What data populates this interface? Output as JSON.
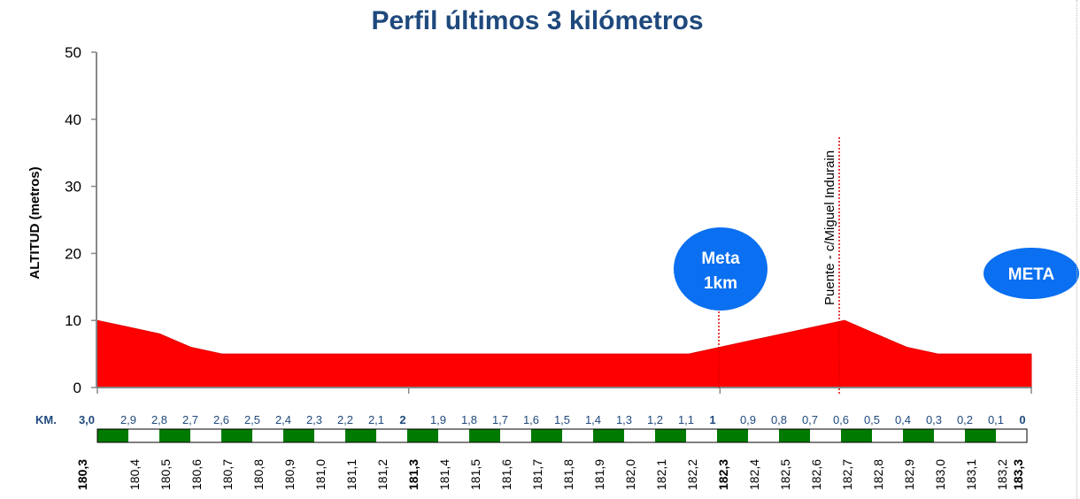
{
  "chart_data": {
    "type": "area",
    "title": "Perfil últimos 3 kilómetros",
    "ylabel": "ALTITUD (metros)",
    "xlabel": "",
    "ylim": [
      0,
      50
    ],
    "yticks": [
      "0",
      "10",
      "20",
      "30",
      "40",
      "50"
    ],
    "xlim": [
      0,
      3
    ],
    "x": [
      0,
      0.1,
      0.2,
      0.3,
      0.4,
      0.5,
      0.6,
      0.7,
      0.8,
      0.9,
      1.0,
      1.1,
      1.2,
      1.3,
      1.4,
      1.5,
      1.6,
      1.7,
      1.8,
      1.9,
      2.0,
      2.1,
      2.2,
      2.3,
      2.4,
      2.5,
      2.6,
      2.7,
      2.8,
      2.9,
      3.0
    ],
    "series": [
      {
        "name": "Altitud",
        "values": [
          10,
          9,
          8,
          6,
          5,
          5,
          5,
          5,
          5,
          5,
          5,
          5,
          5,
          5,
          5,
          5,
          5,
          5,
          5,
          5,
          6,
          7,
          8,
          9,
          10,
          8,
          6,
          5,
          5,
          5,
          5
        ],
        "color": "#ff0000"
      }
    ],
    "km_label": "KM.",
    "km_remaining": [
      "3,0",
      "2,9",
      "2,8",
      "2,7",
      "2,6",
      "2,5",
      "2,4",
      "2,3",
      "2,2",
      "2,1",
      "2",
      "1,9",
      "1,8",
      "1,7",
      "1,6",
      "1,5",
      "1,4",
      "1,3",
      "1,2",
      "1,1",
      "1",
      "0,9",
      "0,8",
      "0,7",
      "0,6",
      "0,5",
      "0,4",
      "0,3",
      "0,2",
      "0,1",
      "0"
    ],
    "km_total": [
      "180,3",
      "180,4",
      "180,5",
      "180,6",
      "180,7",
      "180,8",
      "180,9",
      "181,0",
      "181,1",
      "181,2",
      "181,3",
      "181,4",
      "181,5",
      "181,6",
      "181,7",
      "181,8",
      "181,9",
      "182,0",
      "182,1",
      "182,2",
      "182,3",
      "182,4",
      "182,5",
      "182,6",
      "182,7",
      "182,8",
      "182,9",
      "183,0",
      "183,1",
      "183,2",
      "183,3"
    ],
    "annotations": [
      {
        "type": "badge",
        "text_line1": "Meta",
        "text_line2": "1km",
        "at_km": 2.0
      },
      {
        "type": "line",
        "text": "Puente - c/Miguel Indurain",
        "at_km": 2.39
      },
      {
        "type": "badge",
        "text_line1": "META",
        "at_km": 3.0
      }
    ],
    "colors": {
      "title": "#1f497d",
      "badge": "#0070f0",
      "strip_green": "#007a00",
      "label_blue": "#1f497d"
    }
  }
}
